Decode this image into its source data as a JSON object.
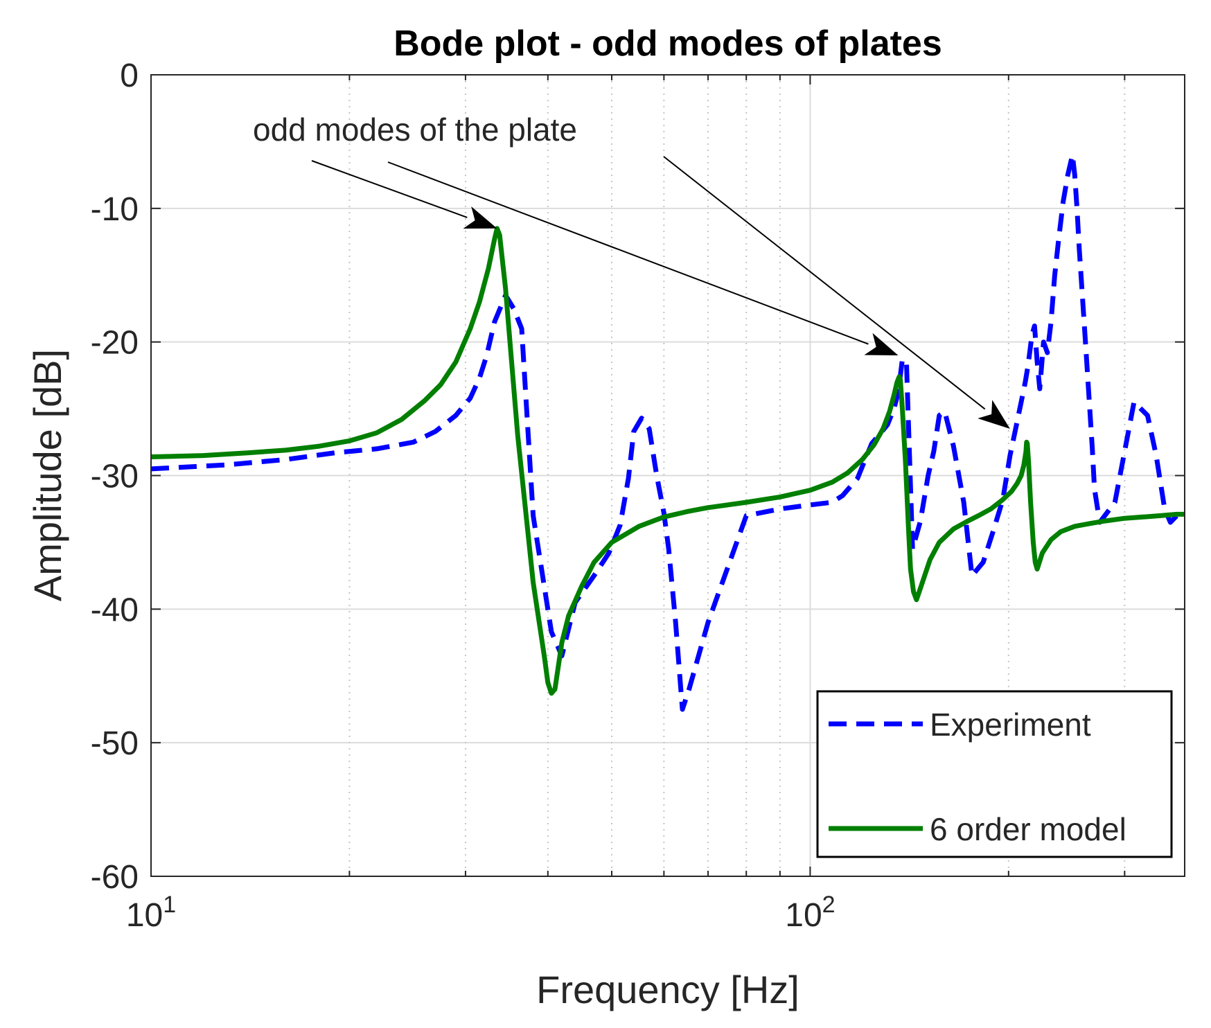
{
  "chart_data": {
    "type": "line",
    "title": "Bode plot - odd modes of plates",
    "xlabel": "Frequency [Hz]",
    "ylabel": "Amplitude [dB]",
    "x_scale": "log",
    "xlim": [
      10,
      370
    ],
    "ylim": [
      -60,
      0
    ],
    "yticks": [
      0,
      -10,
      -20,
      -30,
      -40,
      -50,
      -60
    ],
    "xticks": [
      {
        "value": 10,
        "base": "10",
        "exp": "1"
      },
      {
        "value": 100,
        "base": "10",
        "exp": "2"
      }
    ],
    "grid": true,
    "legend_position": "bottom-right",
    "annotation": {
      "text": "odd modes of the plate",
      "targets": [
        {
          "x": 33.5,
          "y": -11.5
        },
        {
          "x": 136,
          "y": -21
        },
        {
          "x": 201,
          "y": -26.5
        }
      ]
    },
    "series": [
      {
        "name": "Experiment",
        "color": "#0000ff",
        "style": "dashed",
        "x": [
          10,
          13,
          16,
          19,
          22,
          25,
          27,
          29,
          30.5,
          31.5,
          32.3,
          33.2,
          34.5,
          35.5,
          36.5,
          38,
          40.5,
          42,
          44,
          47,
          49.5,
          51.5,
          53,
          54,
          55.5,
          57,
          58.5,
          60,
          61,
          62.5,
          64,
          65.5,
          70,
          80,
          90,
          100,
          108,
          112,
          118,
          124,
          128,
          131,
          134,
          136,
          138,
          140,
          143,
          147,
          151,
          154,
          157,
          160,
          165,
          171,
          176,
          183,
          190,
          196,
          201,
          205,
          209,
          212,
          214,
          217,
          219,
          221,
          223,
          226,
          229,
          232,
          235,
          238,
          242,
          246,
          250,
          252,
          254,
          256,
          258,
          260,
          262,
          264,
          266,
          268,
          270,
          275,
          290,
          310,
          325,
          335,
          345,
          352,
          360,
          370
        ],
        "y": [
          -29.5,
          -29.2,
          -28.8,
          -28.3,
          -28.0,
          -27.5,
          -26.7,
          -25.5,
          -24.2,
          -22.7,
          -21.0,
          -18.5,
          -16.5,
          -17.5,
          -19.0,
          -33,
          -41.7,
          -43.5,
          -39.5,
          -37.5,
          -35.8,
          -33.7,
          -30.2,
          -26.7,
          -25.7,
          -26.5,
          -30.0,
          -32.8,
          -35.5,
          -41.0,
          -47.5,
          -46.0,
          -41.0,
          -33.0,
          -32.5,
          -32.2,
          -32.0,
          -31.5,
          -30.2,
          -27.6,
          -26.8,
          -26.2,
          -25.0,
          -23.8,
          -21.3,
          -21.5,
          -35.5,
          -33.4,
          -30.0,
          -28.2,
          -25.5,
          -25.2,
          -27.8,
          -32.0,
          -37.5,
          -36.5,
          -34.0,
          -31.8,
          -28.5,
          -26.5,
          -24.5,
          -23.0,
          -21.8,
          -19.5,
          -18.8,
          -21.5,
          -23.5,
          -20.0,
          -20.8,
          -18.5,
          -15.0,
          -12.5,
          -9.5,
          -7.5,
          -6.0,
          -7.5,
          -10.0,
          -13.0,
          -15.5,
          -18.0,
          -20.5,
          -23.0,
          -25.5,
          -28.0,
          -31.0,
          -33.5,
          -32.0,
          -24.5,
          -25.5,
          -28.5,
          -32.5,
          -33.5,
          -33.0,
          -33.0
        ]
      },
      {
        "name": "6 order model",
        "color": "#007f00",
        "style": "solid",
        "x": [
          10,
          12,
          14,
          16,
          18,
          20,
          22,
          24,
          26,
          27.5,
          29,
          30.5,
          31.5,
          32.5,
          33.2,
          33.5,
          33.8,
          34.5,
          36,
          38,
          39.5,
          40,
          40.5,
          41,
          42,
          43,
          45,
          47,
          50,
          55,
          60,
          65,
          70,
          80,
          90,
          100,
          108,
          114,
          120,
          125,
          129,
          132,
          134,
          135.5,
          136.5,
          137,
          138,
          139.5,
          141,
          142,
          143.5,
          145,
          148,
          152,
          157,
          165,
          172,
          180,
          188,
          196,
          202,
          206,
          209,
          211,
          212.5,
          213,
          213.5,
          214.5,
          216,
          218,
          219.5,
          221,
          225,
          232,
          240,
          252,
          265,
          280,
          300,
          320,
          340,
          360,
          370
        ],
        "y": [
          -28.6,
          -28.5,
          -28.3,
          -28.1,
          -27.8,
          -27.4,
          -26.8,
          -25.8,
          -24.4,
          -23.2,
          -21.5,
          -19.0,
          -17.0,
          -14.5,
          -12.3,
          -11.5,
          -12.0,
          -16,
          -27,
          -38,
          -43.5,
          -45.5,
          -46.3,
          -46.0,
          -42.5,
          -40.5,
          -38.3,
          -36.5,
          -35.0,
          -33.8,
          -33.1,
          -32.7,
          -32.4,
          -32.0,
          -31.6,
          -31.1,
          -30.5,
          -29.8,
          -28.8,
          -27.7,
          -26.5,
          -25.2,
          -24.0,
          -23.0,
          -22.6,
          -22.8,
          -25.0,
          -29.0,
          -34.0,
          -37.0,
          -38.7,
          -39.3,
          -38.0,
          -36.3,
          -35.0,
          -34.0,
          -33.5,
          -33.0,
          -32.5,
          -31.8,
          -31.2,
          -30.6,
          -30.0,
          -29.2,
          -28.2,
          -27.5,
          -27.6,
          -29.0,
          -32.0,
          -35.0,
          -36.5,
          -37.0,
          -35.8,
          -34.8,
          -34.2,
          -33.8,
          -33.6,
          -33.4,
          -33.2,
          -33.1,
          -33.0,
          -32.9,
          -32.9
        ]
      }
    ]
  }
}
